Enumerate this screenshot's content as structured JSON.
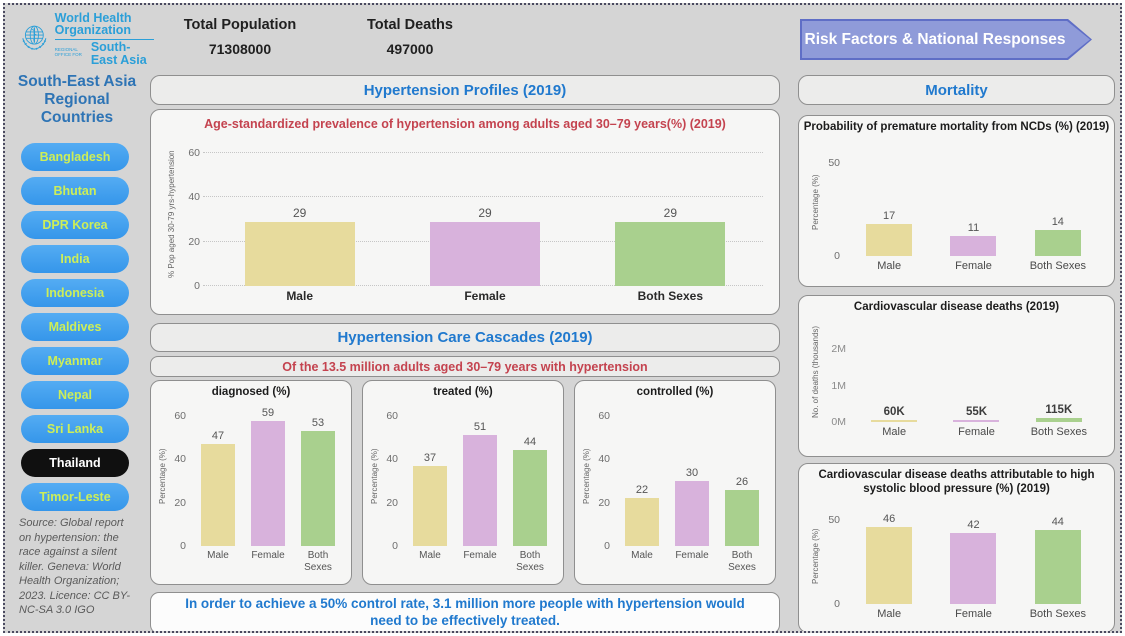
{
  "header": {
    "logo": {
      "line1": "World Health",
      "line2": "Organization",
      "region_small": "REGIONAL OFFICE FOR",
      "region": "South-East Asia"
    },
    "stats": [
      {
        "label": "Total Population",
        "value": "71308000"
      },
      {
        "label": "Total Deaths",
        "value": "497000"
      }
    ],
    "risk_button": "Risk Factors & National Responses"
  },
  "sidebar": {
    "title": "South-East Asia Regional Countries",
    "countries": [
      "Bangladesh",
      "Bhutan",
      "DPR Korea",
      "India",
      "Indonesia",
      "Maldives",
      "Myanmar",
      "Nepal",
      "Sri Lanka",
      "Thailand",
      "Timor-Leste"
    ],
    "selected": "Thailand",
    "source": "Source: Global report on hypertension: the race against a silent killer. Geneva: World Health Organization; 2023. Licence: CC BY-NC-SA 3.0 IGO"
  },
  "main": {
    "profiles_header": "Hypertension Profiles (2019)",
    "cascades_header": "Hypertension Care Cascades (2019)",
    "cascades_subtitle": "Of the 13.5 million adults aged 30–79 years with hypertension",
    "footnote": "In order to achieve a 50% control rate, 3.1 million more people with hypertension would need to be effectively treated."
  },
  "right": {
    "header": "Mortality"
  },
  "colors": {
    "bars": [
      "#e7db9d",
      "#d8b2dc",
      "#a9d08e"
    ],
    "accent_blue": "#2079ce",
    "crimson": "#c4434f",
    "country_button": "#3f9fee",
    "country_text": "#cdee58",
    "arrow_fill": "#8f9bd9",
    "arrow_border": "#5f6ec6"
  },
  "chart_data": [
    {
      "id": "prevalence",
      "type": "bar",
      "title": "Age-standardized prevalence of hypertension among adults aged 30–79 years(%) (2019)",
      "categories": [
        "Male",
        "Female",
        "Both Sexes"
      ],
      "values": [
        29,
        29,
        29
      ],
      "ylabel": "% Pop aged 30-79 yrs-hypertension",
      "yticks": [
        0,
        20,
        40,
        60
      ],
      "ymax": 65,
      "grid": true
    },
    {
      "id": "diagnosed",
      "type": "bar",
      "title": "diagnosed (%)",
      "categories": [
        "Male",
        "Female",
        "Both Sexes"
      ],
      "values": [
        47,
        59,
        53
      ],
      "ylabel": "Percentage (%)",
      "yticks": [
        0,
        20,
        40,
        60
      ],
      "ymax": 64,
      "grid": false
    },
    {
      "id": "treated",
      "type": "bar",
      "title": "treated (%)",
      "categories": [
        "Male",
        "Female",
        "Both Sexes"
      ],
      "values": [
        37,
        51,
        44
      ],
      "ylabel": "Percentage (%)",
      "yticks": [
        0,
        20,
        40,
        60
      ],
      "ymax": 64,
      "grid": false
    },
    {
      "id": "controlled",
      "type": "bar",
      "title": "controlled (%)",
      "categories": [
        "Male",
        "Female",
        "Both Sexes"
      ],
      "values": [
        22,
        30,
        26
      ],
      "ylabel": "Percentage (%)",
      "yticks": [
        0,
        20,
        40,
        60
      ],
      "ymax": 64,
      "grid": false
    },
    {
      "id": "ncd_mortality",
      "type": "bar",
      "title": "Probability of premature mortality from NCDs (%) (2019)",
      "categories": [
        "Male",
        "Female",
        "Both Sexes"
      ],
      "values": [
        17,
        11,
        14
      ],
      "ylabel": "Percentage (%)",
      "yticks": [
        0,
        50
      ],
      "ymax": 58,
      "grid": false
    },
    {
      "id": "cvd_deaths",
      "type": "bar",
      "title": "Cardiovascular disease deaths (2019)",
      "categories": [
        "Male",
        "Female",
        "Both Sexes"
      ],
      "values": [
        60000,
        55000,
        115000
      ],
      "bar_labels": [
        "60K",
        "55K",
        "115K"
      ],
      "ylabel": "No. of deaths (thousands)",
      "yticks": [
        0,
        1000000,
        2000000
      ],
      "ytick_labels": [
        "0M",
        "1M",
        "2M"
      ],
      "ymax": 2700000,
      "grid": false
    },
    {
      "id": "cvd_attributable",
      "type": "bar",
      "title": "Cardiovascular disease deaths attributable to high systolic blood pressure (%) (2019)",
      "categories": [
        "Male",
        "Female",
        "Both Sexes"
      ],
      "values": [
        46,
        42,
        44
      ],
      "ylabel": "Percentage (%)",
      "yticks": [
        0,
        50
      ],
      "ymax": 57,
      "grid": false
    }
  ]
}
